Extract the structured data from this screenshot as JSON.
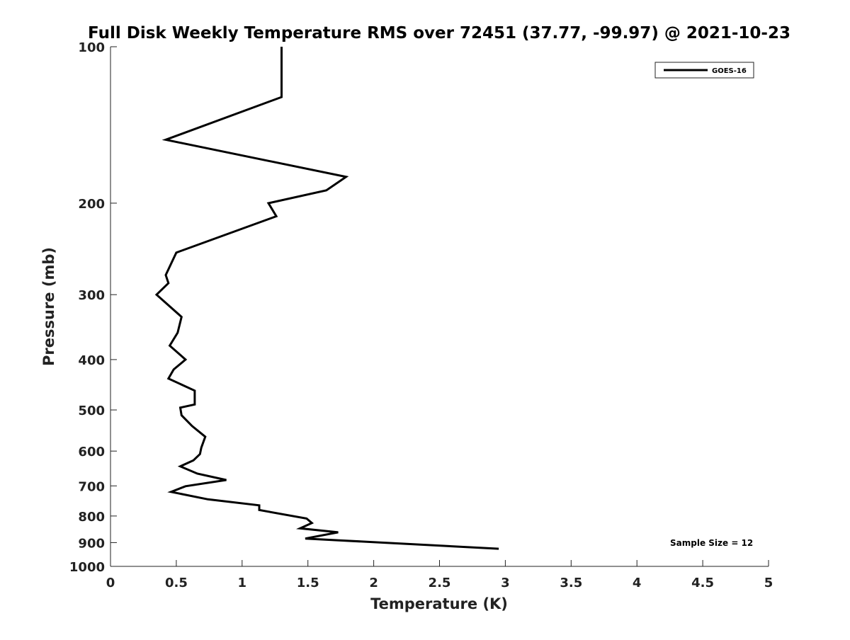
{
  "chart_data": {
    "type": "line",
    "title": "Full Disk Weekly Temperature RMS over 72451 (37.77, -99.97) @ 2021-10-23",
    "xlabel": "Temperature (K)",
    "ylabel": "Pressure (mb)",
    "xlim": [
      0,
      5
    ],
    "ylim": [
      1000,
      100
    ],
    "y_scale": "log",
    "y_reversed": true,
    "x_ticks": [
      0,
      0.5,
      1,
      1.5,
      2,
      2.5,
      3,
      3.5,
      4,
      4.5,
      5
    ],
    "x_tick_labels": [
      "0",
      "0.5",
      "1",
      "1.5",
      "2",
      "2.5",
      "3",
      "3.5",
      "4",
      "4.5",
      "5"
    ],
    "y_ticks": [
      100,
      200,
      300,
      400,
      500,
      600,
      700,
      800,
      900,
      1000
    ],
    "y_tick_labels": [
      "100",
      "200",
      "300",
      "400",
      "500",
      "600",
      "700",
      "800",
      "900",
      "1000"
    ],
    "grid": false,
    "legend_position": "top-right",
    "annotation": "Sample Size = 12",
    "colors": {
      "series": "#000000",
      "axis": "#222222"
    },
    "series": [
      {
        "name": "GOES-16",
        "points": [
          {
            "x": 1.3,
            "p": 100
          },
          {
            "x": 1.3,
            "p": 125
          },
          {
            "x": 0.42,
            "p": 151
          },
          {
            "x": 1.79,
            "p": 178
          },
          {
            "x": 1.64,
            "p": 189
          },
          {
            "x": 1.2,
            "p": 200
          },
          {
            "x": 1.26,
            "p": 212
          },
          {
            "x": 0.5,
            "p": 249
          },
          {
            "x": 0.42,
            "p": 275
          },
          {
            "x": 0.44,
            "p": 285
          },
          {
            "x": 0.35,
            "p": 300
          },
          {
            "x": 0.54,
            "p": 331
          },
          {
            "x": 0.51,
            "p": 355
          },
          {
            "x": 0.45,
            "p": 376
          },
          {
            "x": 0.57,
            "p": 400
          },
          {
            "x": 0.48,
            "p": 418
          },
          {
            "x": 0.44,
            "p": 435
          },
          {
            "x": 0.64,
            "p": 459
          },
          {
            "x": 0.64,
            "p": 488
          },
          {
            "x": 0.53,
            "p": 495
          },
          {
            "x": 0.54,
            "p": 512
          },
          {
            "x": 0.62,
            "p": 537
          },
          {
            "x": 0.72,
            "p": 563
          },
          {
            "x": 0.69,
            "p": 591
          },
          {
            "x": 0.68,
            "p": 608
          },
          {
            "x": 0.63,
            "p": 625
          },
          {
            "x": 0.53,
            "p": 642
          },
          {
            "x": 0.66,
            "p": 663
          },
          {
            "x": 0.88,
            "p": 682
          },
          {
            "x": 0.57,
            "p": 701
          },
          {
            "x": 0.46,
            "p": 719
          },
          {
            "x": 0.74,
            "p": 743
          },
          {
            "x": 1.13,
            "p": 763
          },
          {
            "x": 1.13,
            "p": 779
          },
          {
            "x": 1.49,
            "p": 809
          },
          {
            "x": 1.53,
            "p": 825
          },
          {
            "x": 1.44,
            "p": 845
          },
          {
            "x": 1.73,
            "p": 860
          },
          {
            "x": 1.48,
            "p": 884
          },
          {
            "x": 2.95,
            "p": 925
          }
        ]
      }
    ]
  }
}
